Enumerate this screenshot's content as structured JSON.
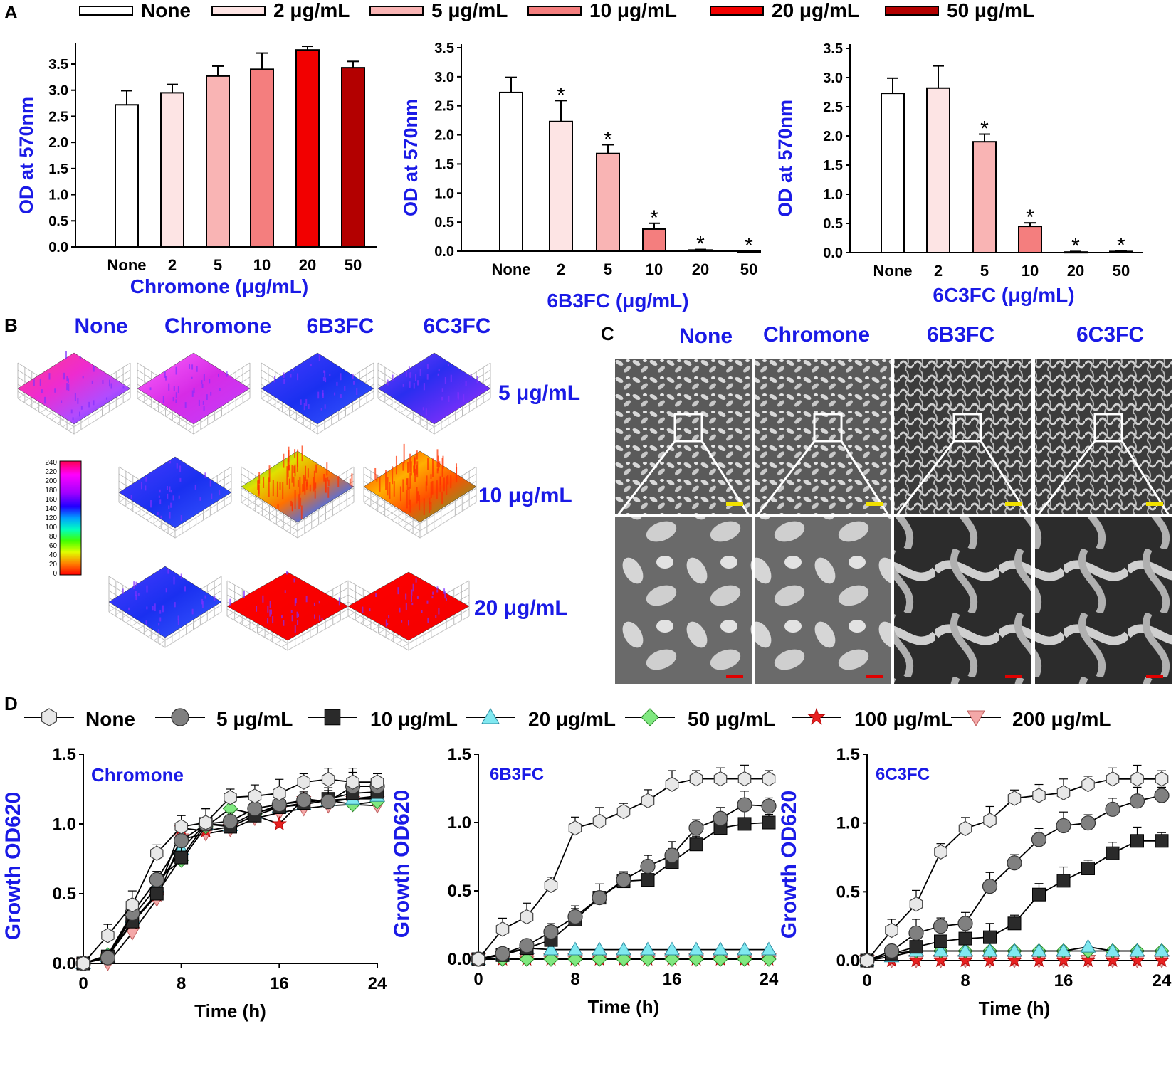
{
  "panels": {
    "A": "A",
    "B": "B",
    "C": "C",
    "D": "D"
  },
  "panelA": {
    "legend": [
      "None",
      "2 μg/mL",
      "5 μg/mL",
      "10 μg/mL",
      "20 μg/mL",
      "50 μg/mL"
    ],
    "colors": [
      "#ffffff",
      "#fde4e4",
      "#f9b4b4",
      "#f47e7e",
      "#f20000",
      "#b30000"
    ]
  },
  "panelB": {
    "columns": [
      "None",
      "Chromone",
      "6B3FC",
      "6C3FC"
    ],
    "rows": [
      "5 μg/mL",
      "10 μg/mL",
      "20 μg/mL"
    ],
    "colorbar_ticks": [
      "240",
      "220",
      "200",
      "180",
      "160",
      "140",
      "120",
      "100",
      "80",
      "60",
      "40",
      "20",
      "0"
    ]
  },
  "panelC": {
    "columns": [
      "None",
      "Chromone",
      "6B3FC",
      "6C3FC"
    ]
  },
  "panelD": {
    "legend": [
      "None",
      "5 μg/mL",
      "10 μg/mL",
      "20 μg/mL",
      "50 μg/mL",
      "100 μg/mL",
      "200 μg/mL"
    ]
  },
  "chart_data": [
    {
      "type": "bar",
      "title": "",
      "categories": [
        "None",
        "2",
        "5",
        "10",
        "20",
        "50"
      ],
      "values": [
        2.72,
        2.95,
        3.27,
        3.4,
        3.77,
        3.43
      ],
      "errors": [
        0.27,
        0.16,
        0.19,
        0.31,
        0.07,
        0.12
      ],
      "stars": [
        "",
        "",
        "",
        "",
        "",
        ""
      ],
      "xlabel": "Chromone (μg/mL)",
      "ylabel": "OD at 570nm",
      "yticks": [
        "0.0",
        "0.5",
        "1.0",
        "1.5",
        "2.0",
        "2.5",
        "3.0",
        "3.5"
      ],
      "ylim": [
        0,
        4.0
      ]
    },
    {
      "type": "bar",
      "title": "",
      "categories": [
        "None",
        "2",
        "5",
        "10",
        "20",
        "50"
      ],
      "values": [
        2.73,
        2.23,
        1.68,
        0.38,
        0.02,
        0.0
      ],
      "errors": [
        0.26,
        0.36,
        0.15,
        0.1,
        0.01,
        0.0
      ],
      "stars": [
        "",
        "*",
        "*",
        "*",
        "*",
        "*"
      ],
      "xlabel": "6B3FC (μg/mL)",
      "ylabel": "OD at 570nm",
      "yticks": [
        "0.0",
        "0.5",
        "1.0",
        "1.5",
        "2.0",
        "2.5",
        "3.0",
        "3.5"
      ],
      "ylim": [
        0,
        3.5
      ]
    },
    {
      "type": "bar",
      "title": "",
      "categories": [
        "None",
        "2",
        "5",
        "10",
        "20",
        "50"
      ],
      "values": [
        2.73,
        2.82,
        1.9,
        0.45,
        0.01,
        0.02
      ],
      "errors": [
        0.26,
        0.38,
        0.13,
        0.06,
        0.01,
        0.01
      ],
      "stars": [
        "",
        "",
        "*",
        "*",
        "*",
        "*"
      ],
      "xlabel": "6C3FC (μg/mL)",
      "ylabel": "OD at 570nm",
      "yticks": [
        "0.0",
        "0.5",
        "1.0",
        "1.5",
        "2.0",
        "2.5",
        "3.0",
        "3.5"
      ],
      "ylim": [
        0,
        3.5
      ]
    },
    {
      "type": "line",
      "title": "Chromone",
      "xlabel": "Time (h)",
      "ylabel": "Growth OD620",
      "xticks": [
        "0",
        "8",
        "16",
        "24"
      ],
      "yticks": [
        "0.0",
        "0.5",
        "1.0",
        "1.5"
      ],
      "xlim": [
        0,
        24
      ],
      "ylim": [
        0,
        1.5
      ],
      "x": [
        0,
        2,
        4,
        6,
        8,
        10,
        12,
        14,
        16,
        18,
        20,
        22,
        24
      ],
      "series": [
        {
          "name": "None",
          "values": [
            0,
            0.2,
            0.42,
            0.79,
            0.98,
            1.01,
            1.19,
            1.2,
            1.22,
            1.3,
            1.32,
            1.3,
            1.3
          ]
        },
        {
          "name": "5 μg/mL",
          "values": [
            0,
            0.04,
            0.36,
            0.6,
            0.88,
            1.0,
            1.02,
            1.11,
            1.14,
            1.17,
            1.16,
            1.27,
            1.27
          ]
        },
        {
          "name": "10 μg/mL",
          "values": [
            0,
            0.05,
            0.3,
            0.5,
            0.76,
            1.0,
            0.98,
            1.06,
            1.12,
            1.15,
            1.18,
            1.22,
            1.23
          ]
        },
        {
          "name": "20 μg/mL",
          "values": [
            0,
            0.05,
            0.33,
            0.55,
            0.82,
            1.0,
            0.99,
            1.08,
            1.12,
            1.14,
            1.17,
            1.18,
            1.2
          ]
        },
        {
          "name": "50 μg/mL",
          "values": [
            0,
            0.06,
            0.36,
            0.6,
            0.74,
            0.98,
            1.11,
            1.07,
            1.14,
            1.16,
            1.17,
            1.14,
            1.16
          ]
        },
        {
          "name": "100 μg/mL",
          "values": [
            0,
            0.05,
            0.29,
            0.49,
            0.97,
            0.95,
            0.98,
            1.06,
            1.0,
            1.18,
            1.16,
            1.18,
            1.18
          ]
        },
        {
          "name": "200 μg/mL",
          "values": [
            0,
            0.0,
            0.22,
            0.46,
            0.89,
            0.93,
            0.96,
            1.04,
            1.08,
            1.11,
            1.13,
            1.14,
            1.13
          ]
        }
      ]
    },
    {
      "type": "line",
      "title": "6B3FC",
      "xlabel": "Time (h)",
      "ylabel": "Growth OD620",
      "xticks": [
        "0",
        "8",
        "16",
        "24"
      ],
      "yticks": [
        "0.0",
        "0.5",
        "1.0",
        "1.5"
      ],
      "xlim": [
        0,
        24
      ],
      "ylim": [
        0,
        1.5
      ],
      "x": [
        0,
        2,
        4,
        6,
        8,
        10,
        12,
        14,
        16,
        18,
        20,
        22,
        24
      ],
      "series": [
        {
          "name": "None",
          "values": [
            0,
            0.22,
            0.31,
            0.54,
            0.96,
            1.01,
            1.08,
            1.16,
            1.28,
            1.32,
            1.32,
            1.32,
            1.32
          ]
        },
        {
          "name": "5 μg/mL",
          "values": [
            0,
            0.04,
            0.1,
            0.2,
            0.31,
            0.45,
            0.58,
            0.68,
            0.76,
            0.96,
            1.03,
            1.13,
            1.12
          ]
        },
        {
          "name": "10 μg/mL",
          "values": [
            0,
            0.03,
            0.08,
            0.14,
            0.29,
            0.45,
            0.57,
            0.58,
            0.71,
            0.84,
            0.96,
            0.99,
            1.0
          ]
        },
        {
          "name": "20 μg/mL",
          "values": [
            0,
            0.04,
            0.08,
            0.07,
            0.07,
            0.07,
            0.07,
            0.07,
            0.07,
            0.07,
            0.07,
            0.07,
            0.07
          ]
        },
        {
          "name": "50 μg/mL",
          "values": [
            0,
            0,
            0,
            0,
            0,
            0,
            0,
            0,
            0,
            0,
            0,
            0,
            0
          ]
        },
        {
          "name": "100 μg/mL",
          "values": [
            0,
            0,
            0,
            0,
            0,
            0,
            0,
            0,
            0,
            0,
            0,
            0,
            0
          ]
        },
        {
          "name": "200 μg/mL",
          "values": [
            0,
            0,
            0,
            0,
            0,
            0,
            0,
            0,
            0,
            0,
            0,
            0,
            0
          ]
        }
      ]
    },
    {
      "type": "line",
      "title": "6C3FC",
      "xlabel": "Time (h)",
      "ylabel": "Growth OD620",
      "xticks": [
        "0",
        "8",
        "16",
        "24"
      ],
      "yticks": [
        "0.0",
        "0.5",
        "1.0",
        "1.5"
      ],
      "xlim": [
        0,
        24
      ],
      "ylim": [
        0,
        1.5
      ],
      "x": [
        0,
        2,
        4,
        6,
        8,
        10,
        12,
        14,
        16,
        18,
        20,
        22,
        24
      ],
      "series": [
        {
          "name": "None",
          "values": [
            0,
            0.22,
            0.41,
            0.79,
            0.96,
            1.02,
            1.18,
            1.2,
            1.22,
            1.28,
            1.32,
            1.32,
            1.32
          ]
        },
        {
          "name": "5 μg/mL",
          "values": [
            0,
            0.07,
            0.2,
            0.25,
            0.27,
            0.54,
            0.71,
            0.88,
            0.98,
            1.0,
            1.1,
            1.16,
            1.2
          ]
        },
        {
          "name": "10 μg/mL",
          "values": [
            0,
            0.05,
            0.1,
            0.14,
            0.16,
            0.17,
            0.27,
            0.48,
            0.58,
            0.67,
            0.78,
            0.87,
            0.87
          ]
        },
        {
          "name": "20 μg/mL",
          "values": [
            0,
            0.03,
            0.07,
            0.07,
            0.07,
            0.07,
            0.07,
            0.07,
            0.07,
            0.1,
            0.07,
            0.07,
            0.07
          ]
        },
        {
          "name": "50 μg/mL",
          "values": [
            0,
            0.05,
            0.07,
            0.07,
            0.07,
            0.07,
            0.07,
            0.07,
            0.07,
            0.07,
            0.07,
            0.07,
            0.07
          ]
        },
        {
          "name": "100 μg/mL",
          "values": [
            0,
            0,
            0,
            0,
            0,
            0,
            0,
            0,
            0,
            0,
            0,
            0,
            0
          ]
        },
        {
          "name": "200 μg/mL",
          "values": [
            0,
            0,
            0,
            0,
            0,
            0,
            0,
            0,
            0,
            0,
            0,
            0,
            0
          ]
        }
      ]
    }
  ]
}
